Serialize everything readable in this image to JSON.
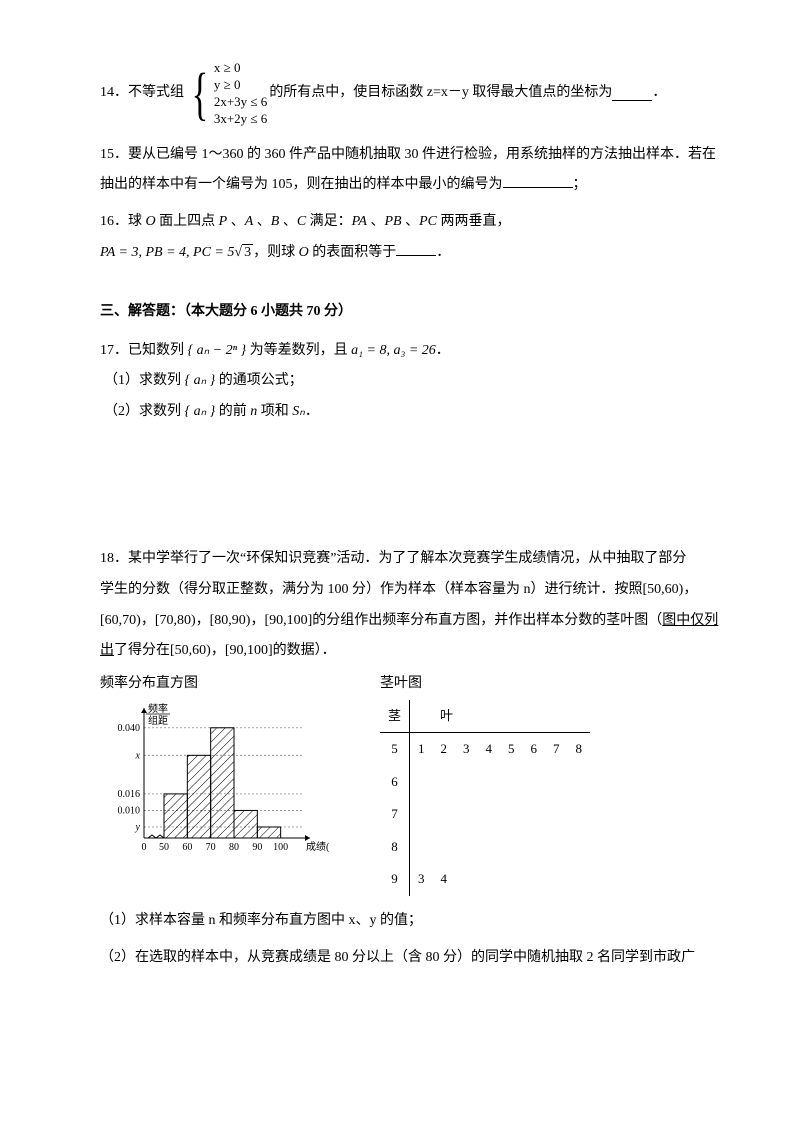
{
  "q14": {
    "prefix": "14．不等式组",
    "sys": [
      "x ≥ 0",
      "y ≥ 0",
      "2x+3y ≤ 6",
      "3x+2y ≤ 6"
    ],
    "suffix": "的所有点中，使目标函数 z=x－y 取得最大值点的坐标为",
    "end": "．"
  },
  "q15": {
    "line1": "15．要从已编号 1～360 的 360 件产品中随机抽取 30 件进行检验，用系统抽样的方法抽出样本．若在",
    "line2a": "抽出的样本中有一个编号为 105",
    "line2b": "，则在抽出的样本中最小的编号为",
    "line2c": "；"
  },
  "q16": {
    "line1_a": "16．球 ",
    "line1_b": " 面上四点 ",
    "line1_c": " 、",
    "line1_d": " 、",
    "line1_e": " 、",
    "line1_f": " 满足：",
    "line1_g": " 、",
    "line1_h": " 、",
    "line1_i": " 两两垂直，",
    "O": "O",
    "P": "P",
    "A": "A",
    "B": "B",
    "C": "C",
    "PA": "PA",
    "PB": "PB",
    "PC": "PC",
    "line2_a": "PA = 3, PB = 4, PC = 5",
    "line2_b": "，则球 ",
    "line2_c": " 的表面积等于",
    "sqrt3": "3",
    "end": "．"
  },
  "section3": "三、解答题：（本大题分 6 小题共 70 分）",
  "q17": {
    "stem_a": "17．已知数列 ",
    "seq": "{ aₙ − 2ⁿ }",
    "stem_b": " 为等差数列，且 ",
    "cond": "a₁ = 8, a₃ = 26",
    "stem_c": "．",
    "p1_a": "（1）求数列 ",
    "an": "{ aₙ }",
    "p1_b": " 的通项公式；",
    "p2_a": "（2）求数列 ",
    "p2_b": " 的前 ",
    "n": "n",
    "p2_c": " 项和 ",
    "Sn": "Sₙ",
    "p2_d": "．"
  },
  "q18": {
    "p1": "18．某中学举行了一次“环保知识竞赛”活动．为了了解本次竞赛学生成绩情况，从中抽取了部分",
    "p2": "学生的分数（得分取正整数，满分为 100 分）作为样本（样本容量为 n）进行统计．按照[50,60)，",
    "p3a": "[60,70)，[70,80)，[80,90)，[90,100]的分组作出频率分布直方图，并作出样本分数的茎叶图（",
    "p3b_u": "图中仅列出",
    "p3c": "了得分在[50,60)，[90,100]的数据）．",
    "hist_title": "频率分布直方图",
    "leaf_title": "茎叶图",
    "sub1": "（1）求样本容量 n 和频率分布直方图中 x、y 的值；",
    "sub2": "（2）在选取的样本中，从竞赛成绩是 80 分以上（含 80 分）的同学中随机抽取 2 名同学到市政广"
  },
  "histogram": {
    "y_label_top": "频率",
    "y_label_bot": "组距",
    "y_ticks": [
      "0.040",
      "x",
      "0.016",
      "0.010",
      "y"
    ],
    "y_tick_pos": [
      0.04,
      0.03,
      0.016,
      0.01,
      0.004
    ],
    "x_ticks": [
      "0",
      "50",
      "60",
      "70",
      "80",
      "90",
      "100"
    ],
    "x_label": "成绩(分)",
    "bars": [
      {
        "x": 50,
        "h": 0.016
      },
      {
        "x": 60,
        "h": 0.03
      },
      {
        "x": 70,
        "h": 0.04
      },
      {
        "x": 80,
        "h": 0.01
      },
      {
        "x": 90,
        "h": 0.004
      }
    ],
    "bar_fill": "#d0d0d0",
    "bar_stroke": "#000",
    "grid_dash": "2,2",
    "axis_color": "#000"
  },
  "stemleaf": {
    "head_stem": "茎",
    "head_leaf": "叶",
    "rows": [
      {
        "stem": "5",
        "leaves": [
          "1",
          "2",
          "3",
          "4",
          "5",
          "6",
          "7",
          "8"
        ]
      },
      {
        "stem": "6",
        "leaves": []
      },
      {
        "stem": "7",
        "leaves": []
      },
      {
        "stem": "8",
        "leaves": []
      },
      {
        "stem": "9",
        "leaves": [
          "3",
          "4"
        ]
      }
    ]
  }
}
